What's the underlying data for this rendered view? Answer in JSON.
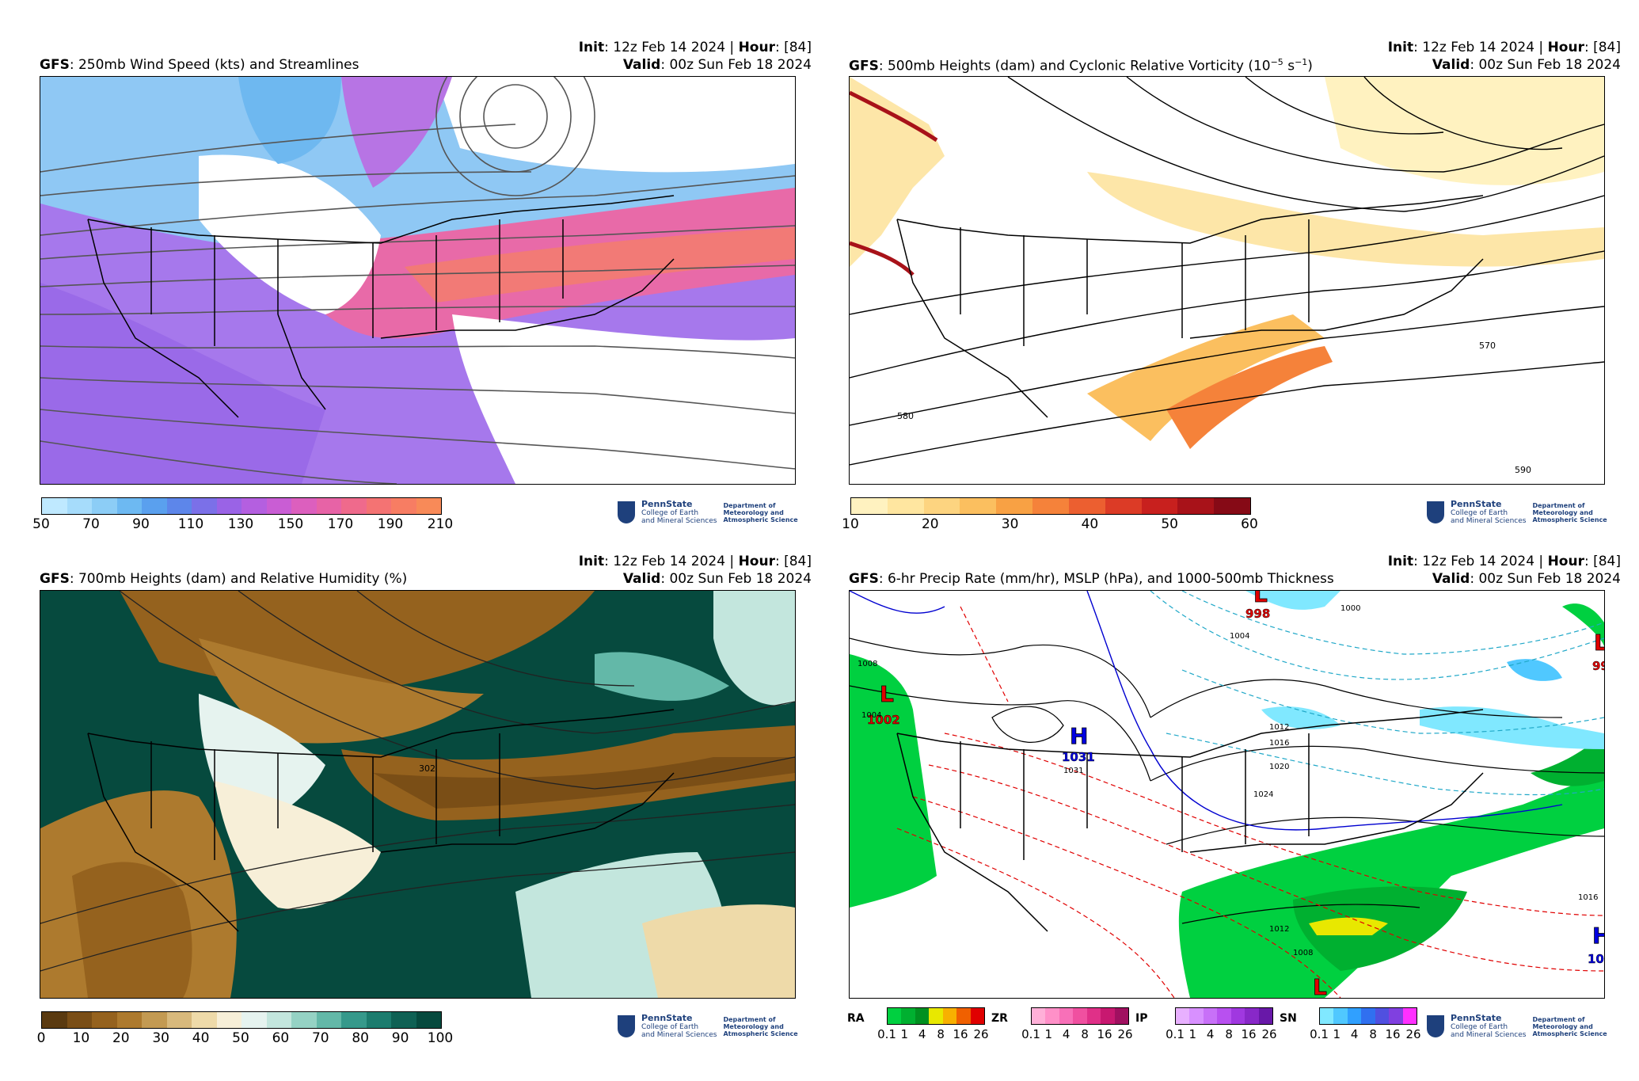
{
  "panels": [
    {
      "title_model": "GFS",
      "title_rest": ": 250mb Wind Speed (kts) and Streamlines",
      "init_label": "Init",
      "init_value": ": 12z Feb 14 2024 | ",
      "hour_label": "Hour",
      "hour_value": ": [84]",
      "valid_label": "Valid",
      "valid_value": ": 00z Sun Feb 18 2024",
      "colorbar_ticks": [
        "50",
        "70",
        "90",
        "110",
        "130",
        "150",
        "170",
        "190",
        "210"
      ],
      "colorbar_colors": [
        "#bfe9ff",
        "#a6dcfb",
        "#8ccdf6",
        "#6db9f2",
        "#5aa0ee",
        "#5d86ea",
        "#7b70e8",
        "#9a63e6",
        "#b45fe0",
        "#c95dd4",
        "#dc5fbe",
        "#e763a6",
        "#ef6a8c",
        "#f47373",
        "#f77d63",
        "#f88a58"
      ]
    },
    {
      "title_model": "GFS",
      "title_rest": ": 500mb Heights (dam) and Cyclonic Relative Vorticity (10",
      "title_sup1": "−5",
      "title_mid": " s",
      "title_sup2": "−1",
      "title_end": ")",
      "init_label": "Init",
      "init_value": ": 12z Feb 14 2024 | ",
      "hour_label": "Hour",
      "hour_value": ": [84]",
      "valid_label": "Valid",
      "valid_value": ": 00z Sun Feb 18 2024",
      "colorbar_ticks": [
        "10",
        "20",
        "30",
        "40",
        "50",
        "60"
      ],
      "colorbar_colors": [
        "#fff2c0",
        "#ffe6a0",
        "#fdd480",
        "#fbbf5f",
        "#f8a144",
        "#f5823a",
        "#ec5f30",
        "#dc3b26",
        "#c8201e",
        "#a81219",
        "#860a16"
      ],
      "contour_labels": [
        "580",
        "570",
        "590"
      ]
    },
    {
      "title_model": "GFS",
      "title_rest": ": 700mb Heights (dam) and Relative Humidity (%)",
      "init_label": "Init",
      "init_value": ": 12z Feb 14 2024 | ",
      "hour_label": "Hour",
      "hour_value": ": [84]",
      "valid_label": "Valid",
      "valid_value": ": 00z Sun Feb 18 2024",
      "colorbar_ticks": [
        "0",
        "10",
        "20",
        "30",
        "40",
        "50",
        "60",
        "70",
        "80",
        "90",
        "100"
      ],
      "colorbar_colors": [
        "#5a3a10",
        "#7a4e16",
        "#95621e",
        "#ad7a2e",
        "#c39a52",
        "#d8b97c",
        "#eedaa9",
        "#f7efd8",
        "#e6f3ef",
        "#c3e6dd",
        "#95d2c4",
        "#63b8a8",
        "#36998b",
        "#1c7c6e",
        "#0f6154",
        "#064a3e"
      ],
      "contour_labels": [
        "302"
      ]
    },
    {
      "title_model": "GFS",
      "title_rest": ": 6-hr Precip Rate (mm/hr), MSLP (hPa), and 1000-500mb Thickness",
      "init_label": "Init",
      "init_value": ": 12z Feb 14 2024 | ",
      "hour_label": "Hour",
      "hour_value": ": [84]",
      "valid_label": "Valid",
      "valid_value": ": 00z Sun Feb 18 2024",
      "pressure_centers": [
        {
          "letter": "L",
          "value": "1002",
          "color": "#e00000"
        },
        {
          "letter": "H",
          "value": "1031",
          "color": "#0000e0"
        },
        {
          "letter": "L",
          "value": "998",
          "color": "#e00000"
        },
        {
          "letter": "L",
          "value": "99",
          "color": "#e00000"
        },
        {
          "letter": "H",
          "value": "10",
          "color": "#0000e0"
        },
        {
          "letter": "L",
          "value": "",
          "color": "#e00000"
        }
      ],
      "contour_labels": [
        "1000",
        "1004",
        "1008",
        "1012",
        "1016",
        "1020",
        "1024",
        "1031",
        "1016",
        "1012",
        "1008",
        "1004"
      ],
      "precip_types": [
        {
          "label": "RA",
          "colors": [
            "#00d040",
            "#00b030",
            "#009020",
            "#e8e800",
            "#f8b000",
            "#f06000",
            "#e00000"
          ]
        },
        {
          "label": "ZR",
          "colors": [
            "#ffb0d8",
            "#ff90c8",
            "#f870b8",
            "#f050a0",
            "#e03088",
            "#c81870",
            "#a01060"
          ]
        },
        {
          "label": "IP",
          "colors": [
            "#e8b0ff",
            "#d890ff",
            "#c870f8",
            "#b850f0",
            "#a038e0",
            "#8828c8",
            "#6818a8"
          ]
        },
        {
          "label": "SN",
          "colors": [
            "#80e8ff",
            "#50c8ff",
            "#30a0ff",
            "#3070f0",
            "#5050e0",
            "#8040e0",
            "#ff30ff"
          ]
        }
      ],
      "precip_ticks": [
        "0.1",
        "1",
        "4",
        "8",
        "16",
        "26"
      ]
    }
  ],
  "logo": {
    "name": "PennState",
    "sub1": "College of Earth",
    "sub2": "and Mineral Sciences",
    "dept1": "Department of",
    "dept2": "Meteorology and",
    "dept3": "Atmospheric Science"
  }
}
